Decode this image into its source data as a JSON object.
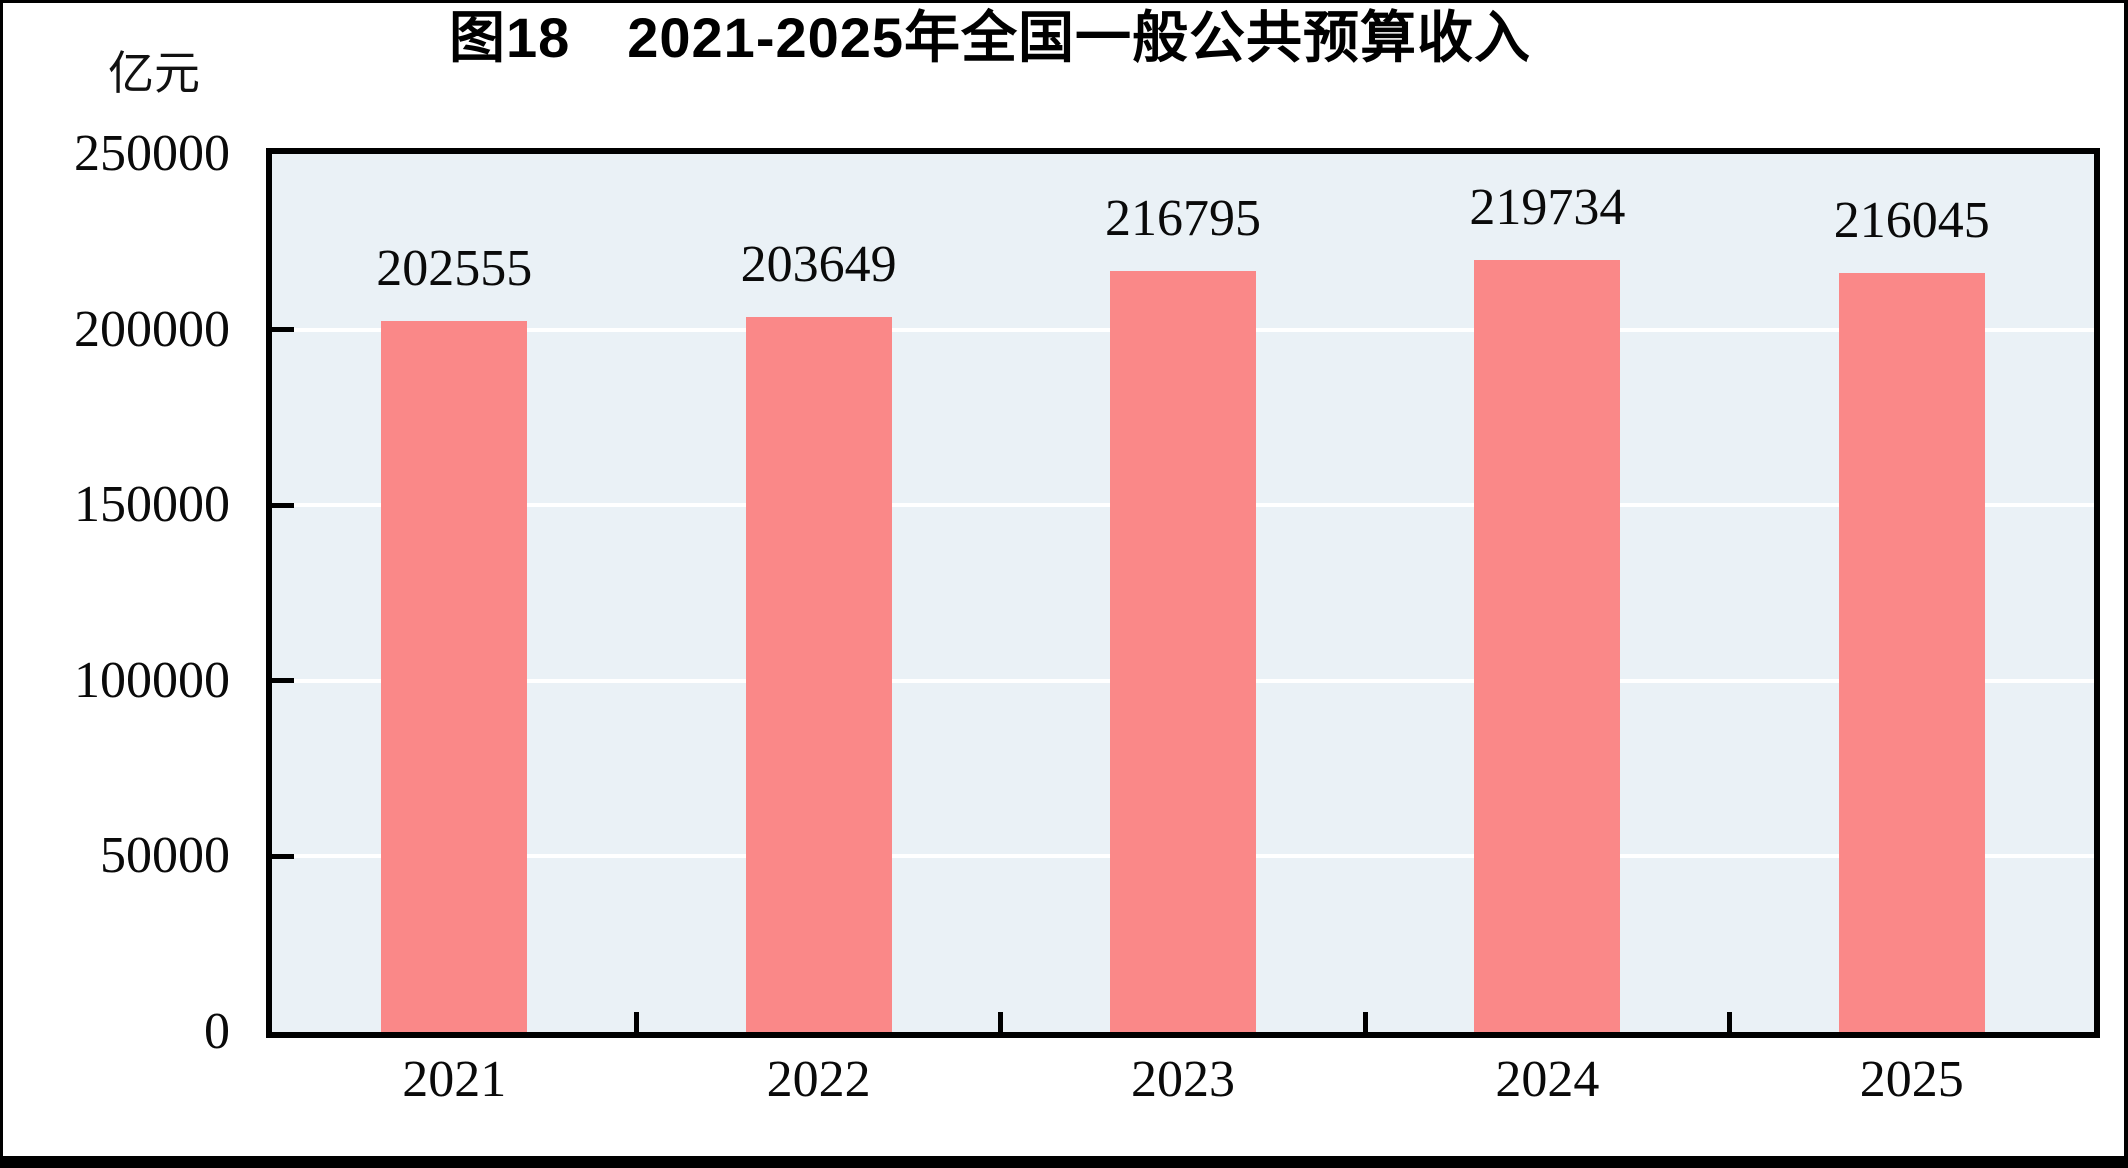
{
  "chart_data": {
    "type": "bar",
    "title": "图18　2021-2025年全国一般公共预算收入",
    "unit_label": "亿元",
    "categories": [
      "2021",
      "2022",
      "2023",
      "2024",
      "2025"
    ],
    "values": [
      202555,
      203649,
      216795,
      219734,
      216045
    ],
    "value_labels": [
      "202555",
      "203649",
      "216795",
      "219734",
      "216045"
    ],
    "ylim": [
      0,
      250000
    ],
    "yticks": [
      0,
      50000,
      100000,
      150000,
      200000,
      250000
    ],
    "ytick_labels": [
      "0",
      "50000",
      "100000",
      "150000",
      "200000",
      "250000"
    ],
    "xlabel": "",
    "ylabel": "亿元",
    "legend_position": "none",
    "grid": "horizontal-white-lines",
    "colors": {
      "bar": "#fa8888",
      "plot_background": "#eaf1f6",
      "gridline": "#ffffff",
      "frame": "#000000",
      "text": "#0a0a0a"
    }
  }
}
